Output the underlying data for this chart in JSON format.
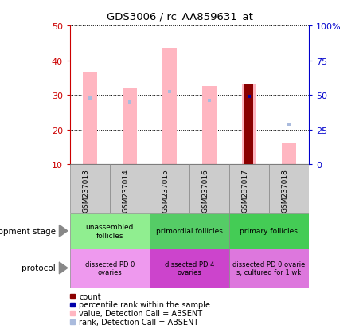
{
  "title": "GDS3006 / rc_AA859631_at",
  "samples": [
    "GSM237013",
    "GSM237014",
    "GSM237015",
    "GSM237016",
    "GSM237017",
    "GSM237018"
  ],
  "value_heights": [
    36.5,
    32.0,
    43.5,
    32.5,
    33.0,
    16.0
  ],
  "rank_y_left": [
    29.0,
    28.0,
    31.0,
    28.5,
    29.5,
    21.5
  ],
  "count_bar_sample": 4,
  "count_bar_height": 33.0,
  "bar_bottom": 10,
  "ylim": [
    10,
    50
  ],
  "y2lim": [
    0,
    100
  ],
  "yticks": [
    10,
    20,
    30,
    40,
    50
  ],
  "y2ticks": [
    0,
    25,
    50,
    75,
    100
  ],
  "bar_width": 0.35,
  "count_bar_width": 0.22,
  "pink_color": "#FFB6C1",
  "dark_red_color": "#8B0000",
  "light_blue_color": "#AABBDD",
  "dark_blue_color": "#0000AA",
  "development_stages": [
    {
      "label": "unassembled\nfollicles",
      "start": 0,
      "end": 2,
      "color": "#90EE90"
    },
    {
      "label": "primordial follicles",
      "start": 2,
      "end": 4,
      "color": "#55CC66"
    },
    {
      "label": "primary follicles",
      "start": 4,
      "end": 6,
      "color": "#44CC55"
    }
  ],
  "protocols": [
    {
      "label": "dissected PD 0\novaries",
      "start": 0,
      "end": 2,
      "color": "#EE99EE"
    },
    {
      "label": "dissected PD 4\novaries",
      "start": 2,
      "end": 4,
      "color": "#CC44CC"
    },
    {
      "label": "dissected PD 0 ovarie\ns, cultured for 1 wk",
      "start": 4,
      "end": 6,
      "color": "#DD77DD"
    }
  ],
  "light_blue_squares": [
    0,
    1,
    2,
    3,
    5
  ],
  "dark_blue_square": 4,
  "ylabel_color_left": "#CC0000",
  "ylabel_color_right": "#0000CC",
  "sample_box_color": "#CCCCCC",
  "legend_colors": [
    "#8B0000",
    "#0000AA",
    "#FFB6C1",
    "#AABBDD"
  ],
  "legend_labels": [
    "count",
    "percentile rank within the sample",
    "value, Detection Call = ABSENT",
    "rank, Detection Call = ABSENT"
  ]
}
